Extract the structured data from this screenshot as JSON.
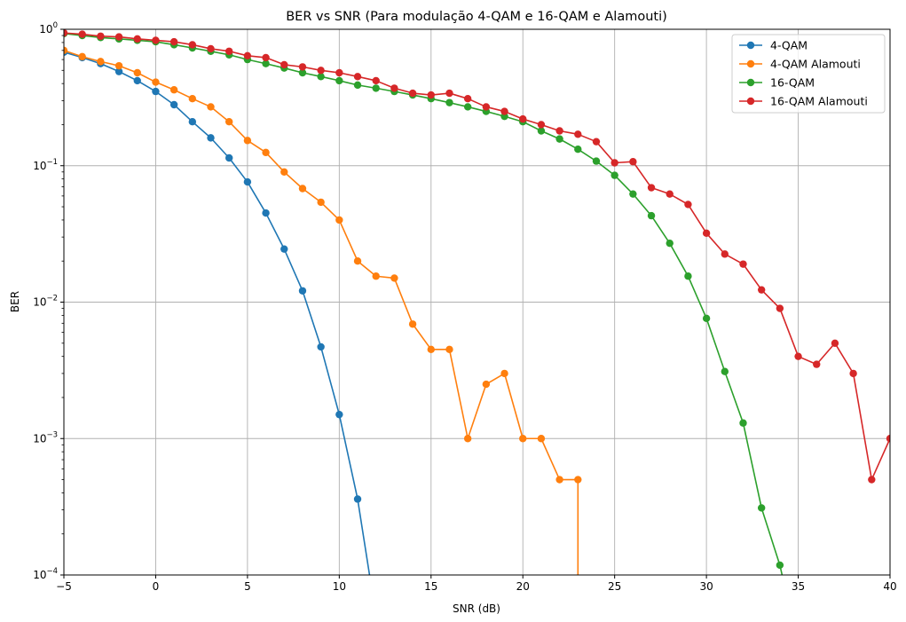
{
  "chart_data": {
    "type": "line",
    "title": "BER vs SNR (Para modulação 4-QAM e 16-QAM e Alamouti)",
    "xlabel": "SNR (dB)",
    "ylabel": "BER",
    "xlim": [
      -5,
      40
    ],
    "ylim": [
      0.0001,
      1
    ],
    "yscale": "log",
    "grid": true,
    "legend_position": "top-right",
    "x_ticks": [
      -5,
      0,
      5,
      10,
      15,
      20,
      25,
      30,
      35,
      40
    ],
    "x_tick_labels": [
      "−5",
      "0",
      "5",
      "10",
      "15",
      "20",
      "25",
      "30",
      "35",
      "40"
    ],
    "y_ticks": [
      0.0001,
      0.001,
      0.01,
      0.1,
      1
    ],
    "y_tick_labels": [
      {
        "base": "10",
        "exp": "−4"
      },
      {
        "base": "10",
        "exp": "−3"
      },
      {
        "base": "10",
        "exp": "−2"
      },
      {
        "base": "10",
        "exp": "−1"
      },
      {
        "base": "10",
        "exp": "0"
      }
    ],
    "series": [
      {
        "name": "4-QAM",
        "color": "#1f77b4",
        "x": [
          -5,
          -4,
          -3,
          -2,
          -1,
          0,
          1,
          2,
          3,
          4,
          5,
          6,
          7,
          8,
          9,
          10,
          11,
          12
        ],
        "values": [
          0.68,
          0.62,
          0.56,
          0.49,
          0.42,
          0.35,
          0.28,
          0.21,
          0.16,
          0.114,
          0.076,
          0.045,
          0.0245,
          0.0121,
          0.0047,
          0.0015,
          0.00036,
          5e-05
        ]
      },
      {
        "name": "4-QAM Alamouti",
        "color": "#ff7f0e",
        "x": [
          -5,
          -4,
          -3,
          -2,
          -1,
          0,
          1,
          2,
          3,
          4,
          5,
          6,
          7,
          8,
          9,
          10,
          11,
          12,
          13,
          14,
          15,
          16,
          17,
          18,
          19,
          20,
          21,
          22,
          23,
          23
        ],
        "values": [
          0.7,
          0.63,
          0.58,
          0.54,
          0.48,
          0.41,
          0.36,
          0.31,
          0.27,
          0.21,
          0.153,
          0.125,
          0.09,
          0.068,
          0.054,
          0.04,
          0.02,
          0.0155,
          0.015,
          0.0069,
          0.0045,
          0.0045,
          0.001,
          0.0025,
          0.003,
          0.001,
          0.001,
          0.0005,
          0.0005,
          3e-05
        ]
      },
      {
        "name": "16-QAM",
        "color": "#2ca02c",
        "x": [
          -5,
          -4,
          -3,
          -2,
          -1,
          0,
          1,
          2,
          3,
          4,
          5,
          6,
          7,
          8,
          9,
          10,
          11,
          12,
          13,
          14,
          15,
          16,
          17,
          18,
          19,
          20,
          21,
          22,
          23,
          24,
          25,
          26,
          27,
          28,
          29,
          30,
          31,
          32,
          33,
          34,
          35
        ],
        "values": [
          0.93,
          0.9,
          0.87,
          0.85,
          0.83,
          0.81,
          0.77,
          0.73,
          0.69,
          0.65,
          0.6,
          0.56,
          0.52,
          0.48,
          0.45,
          0.42,
          0.39,
          0.37,
          0.35,
          0.33,
          0.31,
          0.29,
          0.27,
          0.25,
          0.23,
          0.21,
          0.18,
          0.157,
          0.132,
          0.108,
          0.085,
          0.062,
          0.043,
          0.027,
          0.0155,
          0.0076,
          0.0031,
          0.0013,
          0.00031,
          0.000118,
          3e-05
        ]
      },
      {
        "name": "16-QAM Alamouti",
        "color": "#d62728",
        "x": [
          -5,
          -4,
          -3,
          -2,
          -1,
          0,
          1,
          2,
          3,
          4,
          5,
          6,
          7,
          8,
          9,
          10,
          11,
          12,
          13,
          14,
          15,
          16,
          17,
          18,
          19,
          20,
          21,
          22,
          23,
          24,
          25,
          26,
          27,
          28,
          29,
          30,
          31,
          32,
          33,
          34,
          35,
          36,
          37,
          38,
          39,
          40
        ],
        "values": [
          0.94,
          0.92,
          0.89,
          0.88,
          0.85,
          0.83,
          0.81,
          0.77,
          0.72,
          0.69,
          0.64,
          0.62,
          0.55,
          0.53,
          0.5,
          0.48,
          0.45,
          0.42,
          0.37,
          0.34,
          0.33,
          0.34,
          0.31,
          0.27,
          0.25,
          0.22,
          0.2,
          0.18,
          0.17,
          0.15,
          0.105,
          0.107,
          0.069,
          0.062,
          0.052,
          0.032,
          0.0225,
          0.019,
          0.0123,
          0.009,
          0.004,
          0.0035,
          0.005,
          0.003,
          0.0005,
          0.001
        ]
      }
    ]
  }
}
